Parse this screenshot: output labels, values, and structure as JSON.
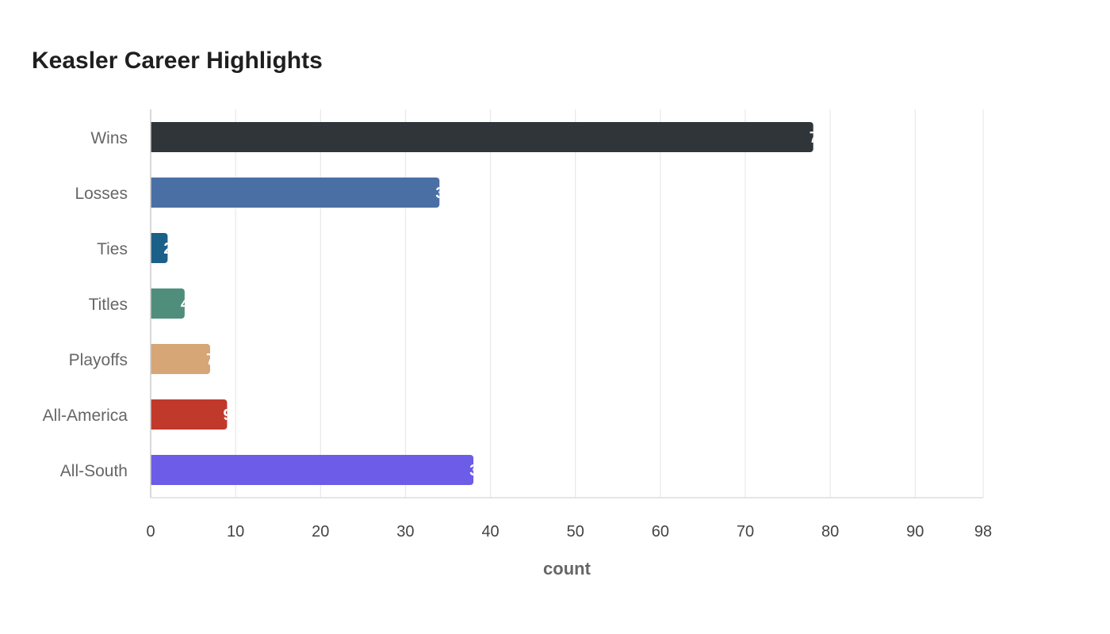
{
  "chart_data": {
    "type": "bar",
    "orientation": "horizontal",
    "title": "Keasler Career Highlights",
    "xlabel": "count",
    "ylabel": "",
    "categories": [
      "Wins",
      "Losses",
      "Ties",
      "Titles",
      "Playoffs",
      "All-America",
      "All-South"
    ],
    "values": [
      78,
      34,
      2,
      4,
      7,
      9,
      38
    ],
    "colors": [
      "#2f3538",
      "#4a6fa5",
      "#1b6088",
      "#4f8e7b",
      "#d6a677",
      "#c0392b",
      "#6c5ce7"
    ],
    "xlim": [
      0,
      98
    ],
    "x_ticks": [
      0,
      10,
      20,
      30,
      40,
      50,
      60,
      70,
      80,
      90,
      98
    ],
    "grid": "vertical",
    "legend": "none"
  }
}
